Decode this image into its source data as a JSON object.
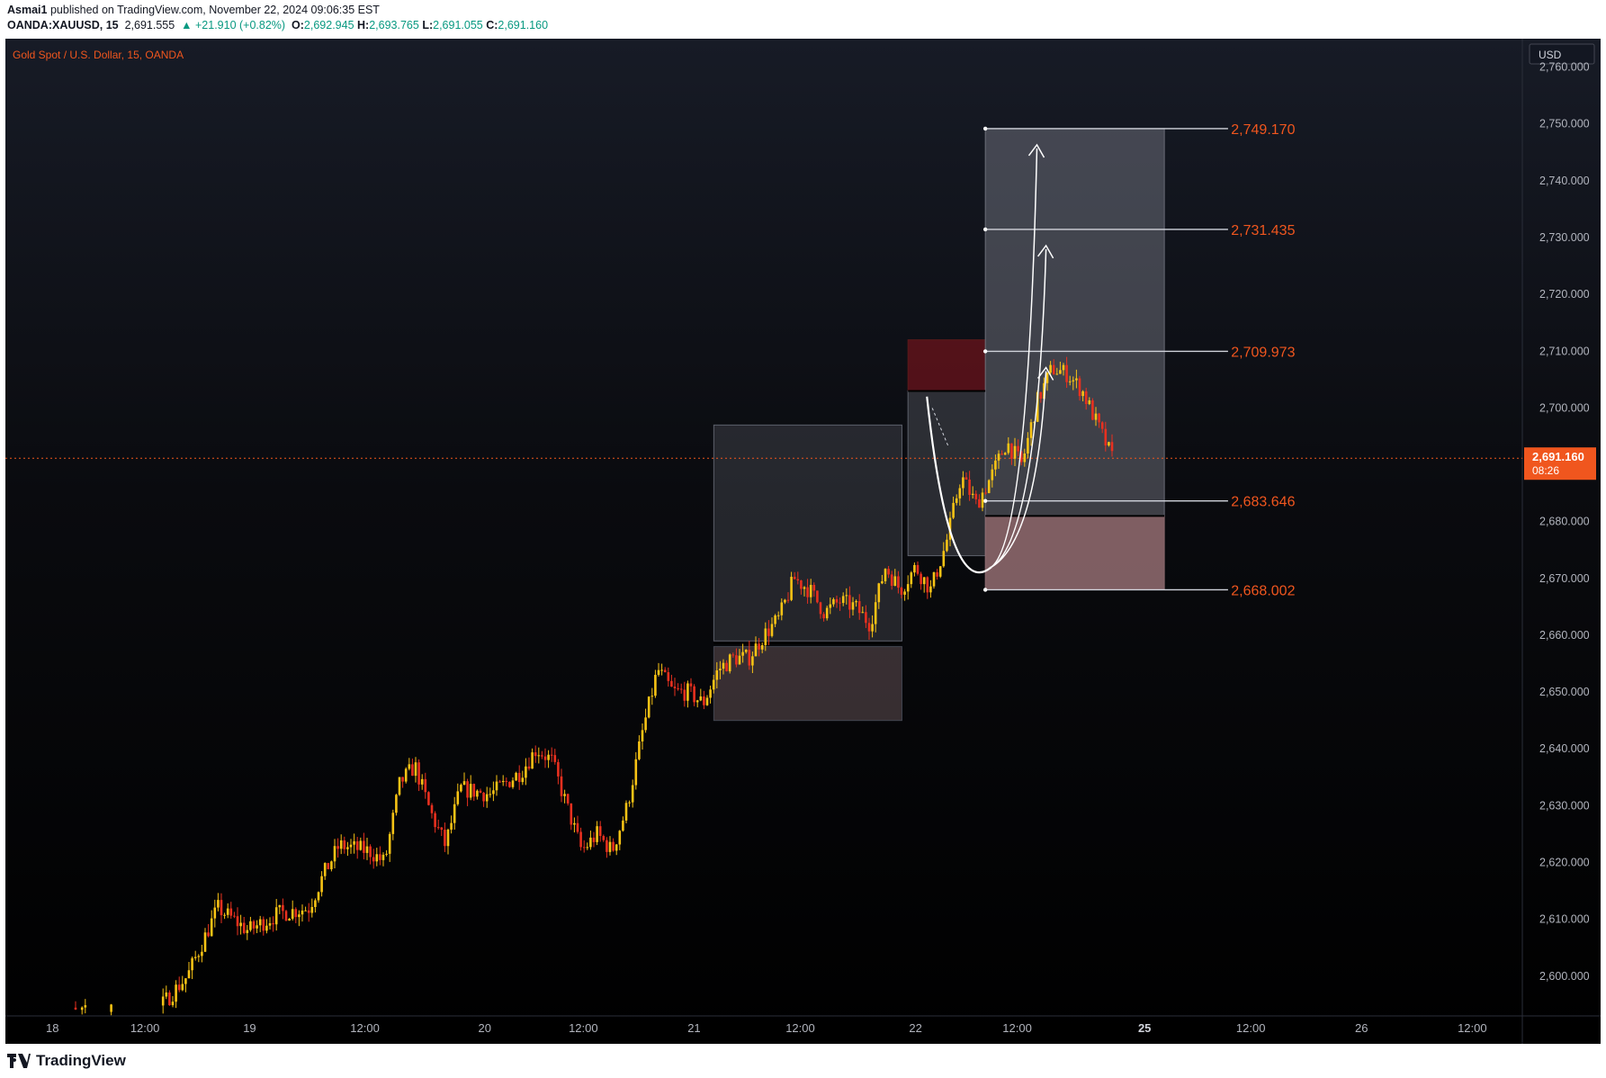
{
  "header": {
    "author": "Asmai1",
    "published": " published on TradingView.com, November 22, 2024 09:06:35 EST",
    "symbol": "OANDA:XAUUSD, 15",
    "price": "2,691.555",
    "change": "▲ +21.910 (+0.82%)",
    "o_label": "O:",
    "o_value": "2,692.945",
    "h_label": "H:",
    "h_value": "2,693.765",
    "l_label": "L:",
    "l_value": "2,691.055",
    "c_label": "C:",
    "c_value": "2,691.160"
  },
  "chart": {
    "title": "Gold Spot / U.S. Dollar, 15, OANDA",
    "currency": "USD",
    "current_price": "2,691.160",
    "countdown": "08:26",
    "colors": {
      "up": "#f7c315",
      "down": "#e8301f",
      "accent": "#f0561e",
      "line": "#ffffff"
    }
  },
  "chart_data": {
    "type": "candlestick",
    "price_axis": [
      "2,760.000",
      "2,750.000",
      "2,740.000",
      "2,730.000",
      "2,720.000",
      "2,710.000",
      "2,700.000",
      "2,690.000",
      "2,680.000",
      "2,670.000",
      "2,660.000",
      "2,650.000",
      "2,640.000",
      "2,630.000",
      "2,620.000",
      "2,610.000",
      "2,600.000"
    ],
    "time_axis": [
      "18",
      "12:00",
      "19",
      "12:00",
      "20",
      "12:00",
      "21",
      "12:00",
      "22",
      "12:00",
      "25",
      "12:00",
      "26",
      "12:00"
    ],
    "bold_time_labels": [
      "25"
    ],
    "ylim": [
      2593,
      2765
    ],
    "close_path": [
      [
        0,
        2593
      ],
      [
        0.1,
        2594
      ],
      [
        0.12,
        2600
      ],
      [
        0.14,
        2612
      ],
      [
        0.16,
        2608
      ],
      [
        0.18,
        2611
      ],
      [
        0.2,
        2612
      ],
      [
        0.21,
        2618
      ],
      [
        0.22,
        2623
      ],
      [
        0.24,
        2622
      ],
      [
        0.25,
        2620
      ],
      [
        0.26,
        2634
      ],
      [
        0.27,
        2637
      ],
      [
        0.28,
        2629
      ],
      [
        0.29,
        2623
      ],
      [
        0.3,
        2633
      ],
      [
        0.32,
        2632
      ],
      [
        0.34,
        2636
      ],
      [
        0.35,
        2640
      ],
      [
        0.36,
        2638
      ],
      [
        0.37,
        2630
      ],
      [
        0.38,
        2622
      ],
      [
        0.39,
        2625
      ],
      [
        0.4,
        2622
      ],
      [
        0.41,
        2630
      ],
      [
        0.42,
        2643
      ],
      [
        0.43,
        2654
      ],
      [
        0.44,
        2650
      ],
      [
        0.45,
        2650
      ],
      [
        0.46,
        2648
      ],
      [
        0.47,
        2654
      ],
      [
        0.48,
        2656
      ],
      [
        0.49,
        2656
      ],
      [
        0.5,
        2660
      ],
      [
        0.51,
        2663
      ],
      [
        0.52,
        2670
      ],
      [
        0.53,
        2668
      ],
      [
        0.54,
        2664
      ],
      [
        0.55,
        2666
      ],
      [
        0.56,
        2665
      ],
      [
        0.57,
        2662
      ],
      [
        0.58,
        2672
      ],
      [
        0.59,
        2668
      ],
      [
        0.6,
        2672
      ],
      [
        0.61,
        2668
      ],
      [
        0.62,
        2676
      ],
      [
        0.63,
        2688
      ],
      [
        0.64,
        2683
      ],
      [
        0.65,
        2688
      ],
      [
        0.66,
        2694
      ],
      [
        0.67,
        2690
      ],
      [
        0.68,
        2701
      ],
      [
        0.69,
        2707
      ],
      [
        0.7,
        2706
      ],
      [
        0.71,
        2703
      ],
      [
        0.72,
        2697
      ],
      [
        0.73,
        2691
      ]
    ],
    "boxes": [
      {
        "name": "accumulation-range",
        "top": 2697,
        "bottom": 2659
      },
      {
        "name": "demand-zone",
        "top": 2658,
        "bottom": 2645
      },
      {
        "name": "supply-zone",
        "top": 2712,
        "bottom": 2703
      },
      {
        "name": "pullback-range",
        "top": 2703,
        "bottom": 2674
      },
      {
        "name": "target-area",
        "top": 2749.17,
        "bottom": 2681
      },
      {
        "name": "entry-zone",
        "top": 2681,
        "bottom": 2668
      }
    ],
    "levels": [
      {
        "label": "2,749.170",
        "value": 2749.17
      },
      {
        "label": "2,731.435",
        "value": 2731.435
      },
      {
        "label": "2,709.973",
        "value": 2709.973
      },
      {
        "label": "2,683.646",
        "value": 2683.646
      },
      {
        "label": "2,668.002",
        "value": 2668.002
      }
    ],
    "projection_low": 2672,
    "grid": false
  },
  "footer": {
    "brand": "TradingView"
  }
}
